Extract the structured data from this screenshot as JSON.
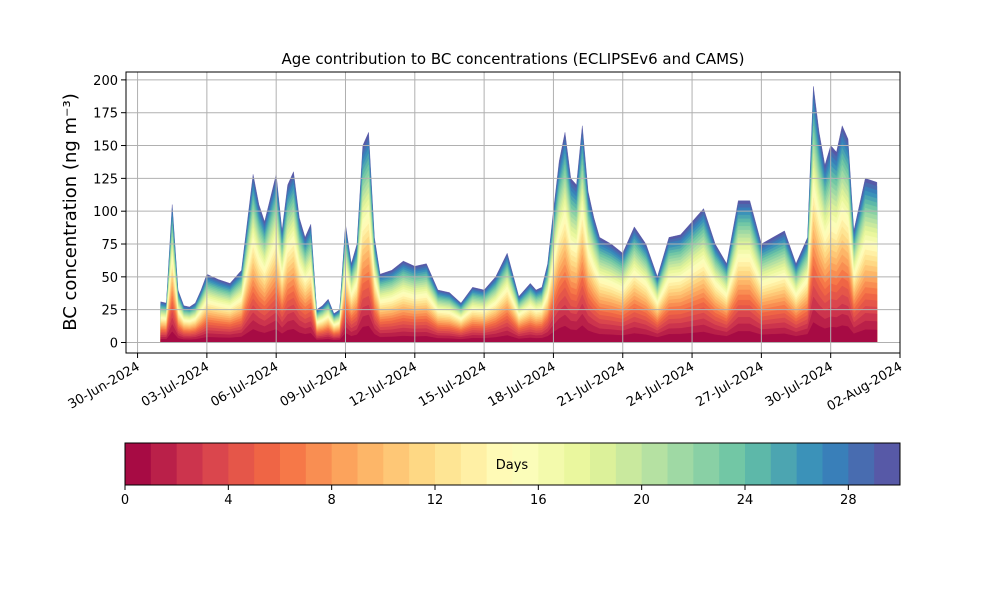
{
  "chart_data": {
    "type": "area",
    "stacked": true,
    "title": "Age contribution to BC concentrations (ECLIPSEv6 and CAMS)",
    "ylabel": "BC concentration (ng m⁻³)",
    "ylim": [
      -8,
      206
    ],
    "yticks": [
      0,
      25,
      50,
      75,
      100,
      125,
      150,
      175,
      200
    ],
    "xlim": [
      "2024-06-29T12:00",
      "2024-08-02T00:00"
    ],
    "xtick_labels": [
      "30-Jun-2024",
      "03-Jul-2024",
      "06-Jul-2024",
      "09-Jul-2024",
      "12-Jul-2024",
      "15-Jul-2024",
      "18-Jul-2024",
      "21-Jul-2024",
      "24-Jul-2024",
      "27-Jul-2024",
      "30-Jul-2024",
      "02-Aug-2024"
    ],
    "grid": true,
    "age_bins_days": 30,
    "total_series": {
      "name": "total",
      "dates": [
        "2024-07-01T00:00",
        "2024-07-01T06:00",
        "2024-07-01T12:00",
        "2024-07-01T18:00",
        "2024-07-02T00:00",
        "2024-07-02T06:00",
        "2024-07-02T12:00",
        "2024-07-02T18:00",
        "2024-07-03T00:00",
        "2024-07-03T12:00",
        "2024-07-04T00:00",
        "2024-07-04T12:00",
        "2024-07-05T00:00",
        "2024-07-05T06:00",
        "2024-07-05T12:00",
        "2024-07-05T18:00",
        "2024-07-06T00:00",
        "2024-07-06T06:00",
        "2024-07-06T12:00",
        "2024-07-06T18:00",
        "2024-07-07T00:00",
        "2024-07-07T06:00",
        "2024-07-07T12:00",
        "2024-07-07T18:00",
        "2024-07-08T00:00",
        "2024-07-08T06:00",
        "2024-07-08T12:00",
        "2024-07-08T18:00",
        "2024-07-09T00:00",
        "2024-07-09T06:00",
        "2024-07-09T12:00",
        "2024-07-09T18:00",
        "2024-07-10T00:00",
        "2024-07-10T06:00",
        "2024-07-10T12:00",
        "2024-07-11T00:00",
        "2024-07-11T12:00",
        "2024-07-12T00:00",
        "2024-07-12T12:00",
        "2024-07-13T00:00",
        "2024-07-13T12:00",
        "2024-07-14T00:00",
        "2024-07-14T12:00",
        "2024-07-15T00:00",
        "2024-07-15T12:00",
        "2024-07-16T00:00",
        "2024-07-16T12:00",
        "2024-07-17T00:00",
        "2024-07-17T06:00",
        "2024-07-17T12:00",
        "2024-07-17T18:00",
        "2024-07-18T00:00",
        "2024-07-18T06:00",
        "2024-07-18T12:00",
        "2024-07-18T18:00",
        "2024-07-19T00:00",
        "2024-07-19T06:00",
        "2024-07-19T12:00",
        "2024-07-19T18:00",
        "2024-07-20T00:00",
        "2024-07-20T12:00",
        "2024-07-21T00:00",
        "2024-07-21T12:00",
        "2024-07-22T00:00",
        "2024-07-22T12:00",
        "2024-07-23T00:00",
        "2024-07-23T12:00",
        "2024-07-24T00:00",
        "2024-07-24T12:00",
        "2024-07-25T00:00",
        "2024-07-25T12:00",
        "2024-07-26T00:00",
        "2024-07-26T12:00",
        "2024-07-27T00:00",
        "2024-07-27T12:00",
        "2024-07-28T00:00",
        "2024-07-28T12:00",
        "2024-07-29T00:00",
        "2024-07-29T06:00",
        "2024-07-29T12:00",
        "2024-07-29T18:00",
        "2024-07-30T00:00",
        "2024-07-30T06:00",
        "2024-07-30T12:00",
        "2024-07-30T18:00",
        "2024-07-31T00:00",
        "2024-07-31T12:00",
        "2024-08-01T00:00"
      ],
      "values": [
        31,
        30,
        105,
        40,
        28,
        27,
        30,
        40,
        52,
        48,
        45,
        55,
        128,
        105,
        92,
        110,
        128,
        85,
        120,
        130,
        95,
        80,
        90,
        25,
        28,
        33,
        22,
        25,
        90,
        60,
        75,
        150,
        160,
        80,
        52,
        55,
        62,
        58,
        60,
        40,
        38,
        30,
        42,
        40,
        50,
        68,
        35,
        45,
        40,
        42,
        60,
        100,
        138,
        160,
        125,
        120,
        165,
        115,
        95,
        80,
        75,
        68,
        88,
        75,
        50,
        80,
        82,
        92,
        102,
        75,
        60,
        108,
        108,
        75,
        80,
        85,
        60,
        80,
        195,
        160,
        135,
        150,
        145,
        165,
        155,
        85,
        125,
        122
      ]
    },
    "colorbar": {
      "label": "Days",
      "min": 0,
      "max": 30,
      "ticks": [
        0,
        4,
        8,
        12,
        16,
        20,
        24,
        28
      ],
      "colormap": "Spectral",
      "bins": 30
    }
  }
}
